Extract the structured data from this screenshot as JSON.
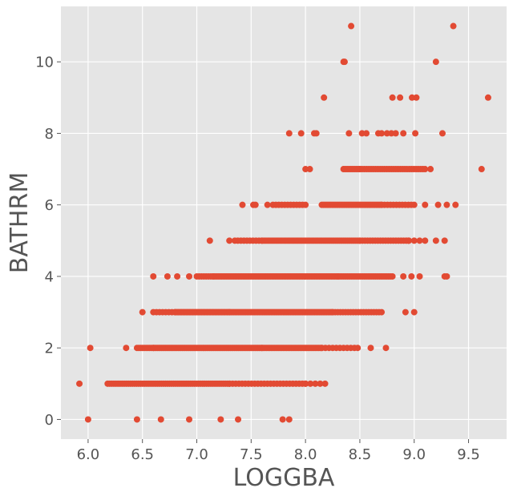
{
  "chart_data": {
    "type": "scatter",
    "title": "",
    "xlabel": "LOGGBA",
    "ylabel": "BATHRM",
    "xlim": [
      5.75,
      9.85
    ],
    "ylim": [
      -0.55,
      11.55
    ],
    "xticks": [
      6.0,
      6.5,
      7.0,
      7.5,
      8.0,
      8.5,
      9.0,
      9.5
    ],
    "xtick_labels": [
      "6.0",
      "6.5",
      "7.0",
      "7.5",
      "8.0",
      "8.5",
      "9.0",
      "9.5"
    ],
    "yticks": [
      0,
      2,
      4,
      6,
      8,
      10
    ],
    "ytick_labels": [
      "0",
      "2",
      "4",
      "6",
      "8",
      "10"
    ],
    "grid": true,
    "style": "ggplot",
    "point_color": "#E24A33",
    "background_color": "#E5E5E5",
    "grid_color": "#FFFFFF",
    "bands": [
      {
        "y": 0,
        "x": [
          6.0,
          6.45,
          6.67,
          6.93,
          7.22,
          7.38,
          7.79,
          7.85
        ]
      },
      {
        "y": 1,
        "x": [
          5.92
        ],
        "ranges": [
          [
            6.18,
            7.3,
            60
          ],
          [
            7.3,
            8.0,
            25
          ],
          [
            8.0,
            8.18,
            5
          ]
        ]
      },
      {
        "y": 2,
        "x": [
          6.02,
          6.35,
          8.48,
          8.6,
          8.74
        ],
        "ranges": [
          [
            6.45,
            6.6,
            10
          ],
          [
            6.6,
            7.6,
            80
          ],
          [
            7.6,
            8.15,
            40
          ],
          [
            8.15,
            8.45,
            10
          ]
        ]
      },
      {
        "y": 3,
        "x": [
          6.5,
          8.92,
          9.0
        ],
        "ranges": [
          [
            6.6,
            6.8,
            8
          ],
          [
            6.8,
            7.3,
            50
          ],
          [
            7.3,
            8.25,
            70
          ],
          [
            8.25,
            8.7,
            20
          ]
        ]
      },
      {
        "y": 4,
        "x": [
          6.6,
          6.73,
          6.82,
          6.93,
          9.28,
          9.3
        ],
        "ranges": [
          [
            7.0,
            7.15,
            8
          ],
          [
            7.15,
            8.3,
            75
          ],
          [
            8.3,
            8.8,
            30
          ],
          [
            8.9,
            9.05,
            3
          ]
        ]
      },
      {
        "y": 5,
        "x": [
          7.12,
          7.3,
          9.2,
          9.28
        ],
        "ranges": [
          [
            7.35,
            7.6,
            10
          ],
          [
            7.6,
            8.5,
            50
          ],
          [
            8.5,
            8.95,
            20
          ],
          [
            8.95,
            9.1,
            4
          ]
        ]
      },
      {
        "y": 6,
        "x": [
          7.42,
          7.52,
          7.54,
          7.65,
          9.1,
          9.22,
          9.3,
          9.38
        ],
        "ranges": [
          [
            7.7,
            8.0,
            12
          ],
          [
            8.15,
            8.7,
            35
          ],
          [
            8.7,
            9.0,
            12
          ]
        ]
      },
      {
        "y": 7,
        "x": [
          8.0,
          8.04,
          9.15,
          9.62
        ],
        "ranges": [
          [
            8.35,
            8.5,
            10
          ],
          [
            8.5,
            9.1,
            30
          ]
        ]
      },
      {
        "y": 8,
        "x": [
          7.85,
          7.96,
          8.08,
          8.1,
          8.4,
          8.52,
          8.56,
          8.67,
          8.7,
          8.75,
          8.79,
          8.83,
          8.9,
          9.01,
          9.26
        ]
      },
      {
        "y": 9,
        "x": [
          8.17,
          8.8,
          8.87,
          8.98,
          9.02
        ]
      },
      {
        "y": 10,
        "x": [
          8.35,
          8.36,
          9.2
        ]
      },
      {
        "y": 11,
        "x": [
          8.42,
          9.36
        ]
      }
    ],
    "extra_points": [
      {
        "x": 9.68,
        "y": 9
      }
    ]
  }
}
